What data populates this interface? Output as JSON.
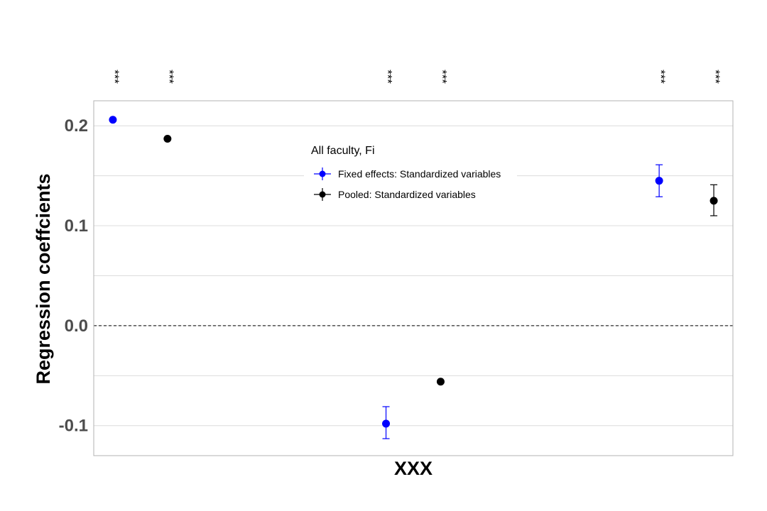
{
  "chart_data": {
    "type": "scatter",
    "title": "",
    "xlabel": "XXX",
    "ylabel": "Regression coeffcients",
    "ylim": [
      -0.13,
      0.225
    ],
    "y_ticks": [
      -0.1,
      0.0,
      0.1,
      0.2
    ],
    "y_tick_labels": [
      "-0.1",
      "0.0",
      "0.1",
      "0.2"
    ],
    "grid": true,
    "reference_line": {
      "y": 0.0,
      "style": "dashed"
    },
    "legend": {
      "title": "All faculty, Fi",
      "placement": "inside-top-center"
    },
    "significance_label": "***",
    "series": [
      {
        "name": "Fixed effects: Standardized variables",
        "color": "#0000ff",
        "points": [
          {
            "x": 1,
            "y": 0.206,
            "lower": null,
            "upper": null
          },
          {
            "x": 6,
            "y": -0.098,
            "lower": -0.113,
            "upper": -0.081
          },
          {
            "x": 11,
            "y": 0.145,
            "lower": 0.129,
            "upper": 0.161
          }
        ]
      },
      {
        "name": "Pooled: Standardized variables",
        "color": "#000000",
        "points": [
          {
            "x": 2,
            "y": 0.187,
            "lower": null,
            "upper": null
          },
          {
            "x": 7,
            "y": -0.056,
            "lower": null,
            "upper": null
          },
          {
            "x": 12,
            "y": 0.125,
            "lower": 0.11,
            "upper": 0.141
          }
        ]
      }
    ]
  }
}
